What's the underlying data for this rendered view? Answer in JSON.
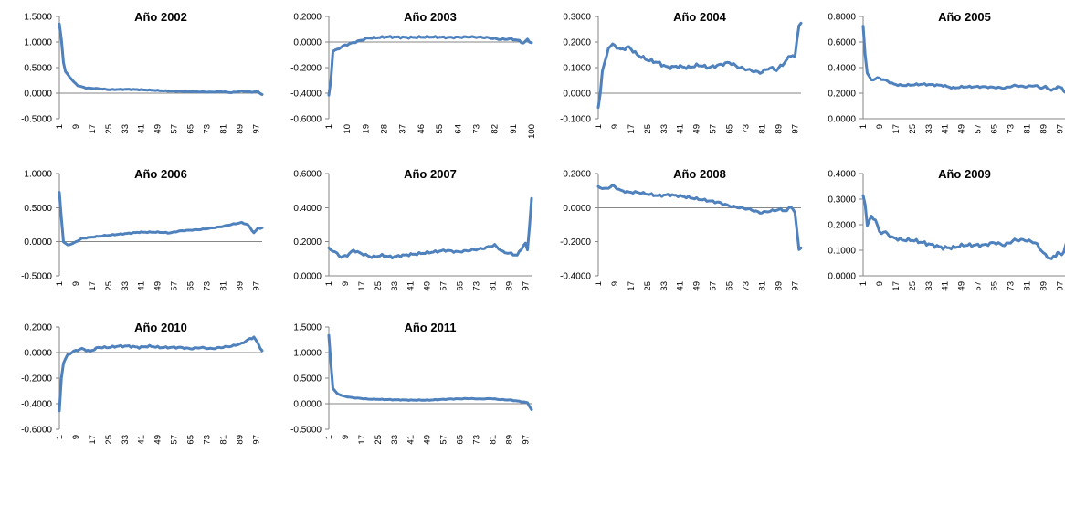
{
  "colors": {
    "series": "#4f81bd",
    "axis": "#868686"
  },
  "chart_data": [
    {
      "type": "line",
      "title": "Año 2002",
      "ylim": [
        -0.5,
        1.5
      ],
      "yticks": [
        "1.5000",
        "1.0000",
        "0.5000",
        "0.0000",
        "-0.5000"
      ],
      "xticks": [
        "1",
        "9",
        "17",
        "25",
        "33",
        "41",
        "49",
        "57",
        "65",
        "73",
        "81",
        "89",
        "97"
      ],
      "grid": false,
      "legend": "none",
      "keypoints": [
        [
          1,
          1.35
        ],
        [
          2,
          1.05
        ],
        [
          3,
          0.6
        ],
        [
          4,
          0.42
        ],
        [
          6,
          0.32
        ],
        [
          8,
          0.22
        ],
        [
          10,
          0.15
        ],
        [
          14,
          0.1
        ],
        [
          20,
          0.09
        ],
        [
          25,
          0.07
        ],
        [
          35,
          0.075
        ],
        [
          45,
          0.06
        ],
        [
          55,
          0.04
        ],
        [
          65,
          0.03
        ],
        [
          75,
          0.02
        ],
        [
          80,
          0.03
        ],
        [
          85,
          0.01
        ],
        [
          90,
          0.04
        ],
        [
          95,
          0.02
        ],
        [
          98,
          0.03
        ],
        [
          100,
          -0.03
        ]
      ]
    },
    {
      "type": "line",
      "title": "Año 2003",
      "ylim": [
        -0.6,
        0.2
      ],
      "yticks": [
        "0.2000",
        "0.0000",
        "-0.2000",
        "-0.4000",
        "-0.6000"
      ],
      "xticks": [
        "1",
        "10",
        "19",
        "28",
        "37",
        "46",
        "55",
        "64",
        "73",
        "82",
        "91",
        "100"
      ],
      "grid": false,
      "legend": "none",
      "keypoints": [
        [
          1,
          -0.42
        ],
        [
          2,
          -0.3
        ],
        [
          3,
          -0.07
        ],
        [
          5,
          -0.06
        ],
        [
          8,
          -0.03
        ],
        [
          12,
          -0.01
        ],
        [
          16,
          0.01
        ],
        [
          20,
          0.03
        ],
        [
          30,
          0.04
        ],
        [
          40,
          0.035
        ],
        [
          50,
          0.04
        ],
        [
          60,
          0.035
        ],
        [
          70,
          0.04
        ],
        [
          78,
          0.035
        ],
        [
          85,
          0.02
        ],
        [
          90,
          0.025
        ],
        [
          94,
          0.01
        ],
        [
          96,
          -0.01
        ],
        [
          98,
          0.02
        ],
        [
          100,
          -0.01
        ]
      ]
    },
    {
      "type": "line",
      "title": "Año 2004",
      "ylim": [
        -0.1,
        0.3
      ],
      "yticks": [
        "0.3000",
        "0.2000",
        "0.1000",
        "0.0000",
        "-0.1000"
      ],
      "xticks": [
        "1",
        "9",
        "17",
        "25",
        "33",
        "41",
        "49",
        "57",
        "65",
        "73",
        "81",
        "89",
        "97"
      ],
      "grid": false,
      "legend": "none",
      "keypoints": [
        [
          1,
          -0.06
        ],
        [
          2,
          0.0
        ],
        [
          3,
          0.09
        ],
        [
          5,
          0.14
        ],
        [
          6,
          0.18
        ],
        [
          8,
          0.19
        ],
        [
          12,
          0.17
        ],
        [
          16,
          0.18
        ],
        [
          20,
          0.15
        ],
        [
          25,
          0.13
        ],
        [
          30,
          0.12
        ],
        [
          35,
          0.1
        ],
        [
          40,
          0.105
        ],
        [
          45,
          0.1
        ],
        [
          50,
          0.11
        ],
        [
          55,
          0.1
        ],
        [
          60,
          0.11
        ],
        [
          65,
          0.12
        ],
        [
          70,
          0.1
        ],
        [
          75,
          0.09
        ],
        [
          80,
          0.08
        ],
        [
          85,
          0.1
        ],
        [
          88,
          0.09
        ],
        [
          92,
          0.12
        ],
        [
          95,
          0.15
        ],
        [
          97,
          0.14
        ],
        [
          99,
          0.27
        ]
      ]
    },
    {
      "type": "line",
      "title": "Año 2005",
      "ylim": [
        0.0,
        0.8
      ],
      "yticks": [
        "0.8000",
        "0.6000",
        "0.4000",
        "0.2000",
        "0.0000"
      ],
      "xticks": [
        "1",
        "9",
        "17",
        "25",
        "33",
        "41",
        "49",
        "57",
        "65",
        "73",
        "81",
        "89",
        "97"
      ],
      "grid": false,
      "legend": "none",
      "keypoints": [
        [
          1,
          0.72
        ],
        [
          2,
          0.5
        ],
        [
          3,
          0.36
        ],
        [
          5,
          0.3
        ],
        [
          8,
          0.32
        ],
        [
          12,
          0.3
        ],
        [
          16,
          0.27
        ],
        [
          20,
          0.26
        ],
        [
          30,
          0.27
        ],
        [
          40,
          0.26
        ],
        [
          45,
          0.24
        ],
        [
          50,
          0.25
        ],
        [
          60,
          0.25
        ],
        [
          70,
          0.24
        ],
        [
          75,
          0.26
        ],
        [
          80,
          0.25
        ],
        [
          85,
          0.26
        ],
        [
          88,
          0.24
        ],
        [
          90,
          0.25
        ],
        [
          93,
          0.22
        ],
        [
          96,
          0.25
        ],
        [
          98,
          0.24
        ],
        [
          100,
          0.2
        ]
      ]
    },
    {
      "type": "line",
      "title": "Año 2006",
      "ylim": [
        -0.5,
        1.0
      ],
      "yticks": [
        "1.0000",
        "0.5000",
        "0.0000",
        "-0.5000"
      ],
      "xticks": [
        "1",
        "9",
        "17",
        "25",
        "33",
        "41",
        "49",
        "57",
        "65",
        "73",
        "81",
        "89",
        "97"
      ],
      "grid": false,
      "legend": "none",
      "keypoints": [
        [
          1,
          0.72
        ],
        [
          2,
          0.35
        ],
        [
          3,
          0.0
        ],
        [
          5,
          -0.05
        ],
        [
          8,
          -0.02
        ],
        [
          12,
          0.05
        ],
        [
          20,
          0.08
        ],
        [
          30,
          0.11
        ],
        [
          40,
          0.14
        ],
        [
          50,
          0.14
        ],
        [
          55,
          0.13
        ],
        [
          60,
          0.16
        ],
        [
          70,
          0.18
        ],
        [
          80,
          0.22
        ],
        [
          86,
          0.26
        ],
        [
          90,
          0.28
        ],
        [
          93,
          0.25
        ],
        [
          96,
          0.13
        ],
        [
          98,
          0.2
        ],
        [
          100,
          0.2
        ]
      ]
    },
    {
      "type": "line",
      "title": "Año 2007",
      "ylim": [
        0.0,
        0.6
      ],
      "yticks": [
        "0.6000",
        "0.4000",
        "0.2000",
        "0.0000"
      ],
      "xticks": [
        "1",
        "9",
        "17",
        "25",
        "33",
        "41",
        "49",
        "57",
        "65",
        "73",
        "81",
        "89",
        "97"
      ],
      "grid": false,
      "legend": "none",
      "keypoints": [
        [
          1,
          0.16
        ],
        [
          4,
          0.14
        ],
        [
          7,
          0.11
        ],
        [
          10,
          0.12
        ],
        [
          13,
          0.15
        ],
        [
          17,
          0.13
        ],
        [
          22,
          0.11
        ],
        [
          27,
          0.12
        ],
        [
          32,
          0.11
        ],
        [
          37,
          0.12
        ],
        [
          45,
          0.13
        ],
        [
          52,
          0.14
        ],
        [
          58,
          0.15
        ],
        [
          64,
          0.14
        ],
        [
          70,
          0.15
        ],
        [
          76,
          0.16
        ],
        [
          82,
          0.18
        ],
        [
          86,
          0.14
        ],
        [
          90,
          0.13
        ],
        [
          93,
          0.12
        ],
        [
          95,
          0.16
        ],
        [
          97,
          0.19
        ],
        [
          98,
          0.15
        ],
        [
          100,
          0.45
        ]
      ]
    },
    {
      "type": "line",
      "title": "Año 2008",
      "ylim": [
        -0.4,
        0.2
      ],
      "yticks": [
        "0.2000",
        "0.0000",
        "-0.2000",
        "-0.4000"
      ],
      "xticks": [
        "1",
        "9",
        "17",
        "25",
        "33",
        "41",
        "49",
        "57",
        "65",
        "73",
        "81",
        "89",
        "97"
      ],
      "grid": false,
      "legend": "none",
      "keypoints": [
        [
          1,
          0.12
        ],
        [
          5,
          0.11
        ],
        [
          8,
          0.13
        ],
        [
          12,
          0.1
        ],
        [
          16,
          0.09
        ],
        [
          20,
          0.09
        ],
        [
          25,
          0.08
        ],
        [
          30,
          0.07
        ],
        [
          35,
          0.075
        ],
        [
          40,
          0.07
        ],
        [
          45,
          0.06
        ],
        [
          50,
          0.05
        ],
        [
          55,
          0.04
        ],
        [
          60,
          0.03
        ],
        [
          65,
          0.01
        ],
        [
          70,
          0.0
        ],
        [
          75,
          -0.01
        ],
        [
          80,
          -0.03
        ],
        [
          85,
          -0.02
        ],
        [
          90,
          -0.01
        ],
        [
          93,
          -0.02
        ],
        [
          95,
          0.01
        ],
        [
          97,
          -0.03
        ],
        [
          99,
          -0.24
        ]
      ]
    },
    {
      "type": "line",
      "title": "Año 2009",
      "ylim": [
        0.0,
        0.4
      ],
      "yticks": [
        "0.4000",
        "0.3000",
        "0.2000",
        "0.1000",
        "0.0000"
      ],
      "xticks": [
        "1",
        "9",
        "17",
        "25",
        "33",
        "41",
        "49",
        "57",
        "65",
        "73",
        "81",
        "89",
        "97"
      ],
      "grid": false,
      "legend": "none",
      "keypoints": [
        [
          1,
          0.31
        ],
        [
          2,
          0.28
        ],
        [
          3,
          0.2
        ],
        [
          5,
          0.23
        ],
        [
          7,
          0.22
        ],
        [
          9,
          0.17
        ],
        [
          12,
          0.17
        ],
        [
          15,
          0.15
        ],
        [
          20,
          0.14
        ],
        [
          25,
          0.14
        ],
        [
          30,
          0.13
        ],
        [
          35,
          0.12
        ],
        [
          40,
          0.11
        ],
        [
          45,
          0.11
        ],
        [
          50,
          0.12
        ],
        [
          55,
          0.12
        ],
        [
          60,
          0.12
        ],
        [
          65,
          0.13
        ],
        [
          70,
          0.12
        ],
        [
          75,
          0.14
        ],
        [
          80,
          0.14
        ],
        [
          85,
          0.13
        ],
        [
          88,
          0.1
        ],
        [
          90,
          0.08
        ],
        [
          93,
          0.065
        ],
        [
          96,
          0.09
        ],
        [
          98,
          0.08
        ],
        [
          100,
          0.12
        ]
      ]
    },
    {
      "type": "line",
      "title": "Año 2010",
      "ylim": [
        -0.6,
        0.2
      ],
      "yticks": [
        "0.2000",
        "0.0000",
        "-0.2000",
        "-0.4000",
        "-0.6000"
      ],
      "xticks": [
        "1",
        "9",
        "17",
        "25",
        "33",
        "41",
        "49",
        "57",
        "65",
        "73",
        "81",
        "89",
        "97"
      ],
      "grid": false,
      "legend": "none",
      "keypoints": [
        [
          1,
          -0.46
        ],
        [
          2,
          -0.2
        ],
        [
          3,
          -0.08
        ],
        [
          5,
          -0.02
        ],
        [
          8,
          0.01
        ],
        [
          12,
          0.03
        ],
        [
          16,
          0.01
        ],
        [
          20,
          0.04
        ],
        [
          25,
          0.04
        ],
        [
          30,
          0.05
        ],
        [
          35,
          0.05
        ],
        [
          40,
          0.04
        ],
        [
          45,
          0.05
        ],
        [
          50,
          0.04
        ],
        [
          55,
          0.04
        ],
        [
          60,
          0.04
        ],
        [
          65,
          0.03
        ],
        [
          70,
          0.04
        ],
        [
          75,
          0.03
        ],
        [
          80,
          0.04
        ],
        [
          85,
          0.05
        ],
        [
          90,
          0.07
        ],
        [
          93,
          0.1
        ],
        [
          96,
          0.12
        ],
        [
          98,
          0.07
        ],
        [
          100,
          0.01
        ]
      ]
    },
    {
      "type": "line",
      "title": "Año 2011",
      "ylim": [
        -0.5,
        1.5
      ],
      "yticks": [
        "1.5000",
        "1.0000",
        "0.5000",
        "0.0000",
        "-0.5000"
      ],
      "xticks": [
        "1",
        "9",
        "17",
        "25",
        "33",
        "41",
        "49",
        "57",
        "65",
        "73",
        "81",
        "89",
        "97"
      ],
      "grid": false,
      "legend": "none",
      "keypoints": [
        [
          1,
          1.33
        ],
        [
          2,
          0.8
        ],
        [
          3,
          0.3
        ],
        [
          5,
          0.2
        ],
        [
          8,
          0.15
        ],
        [
          12,
          0.12
        ],
        [
          20,
          0.09
        ],
        [
          30,
          0.08
        ],
        [
          40,
          0.07
        ],
        [
          50,
          0.07
        ],
        [
          60,
          0.09
        ],
        [
          70,
          0.1
        ],
        [
          75,
          0.09
        ],
        [
          80,
          0.1
        ],
        [
          85,
          0.08
        ],
        [
          90,
          0.07
        ],
        [
          95,
          0.04
        ],
        [
          98,
          0.02
        ],
        [
          100,
          -0.12
        ]
      ]
    }
  ]
}
